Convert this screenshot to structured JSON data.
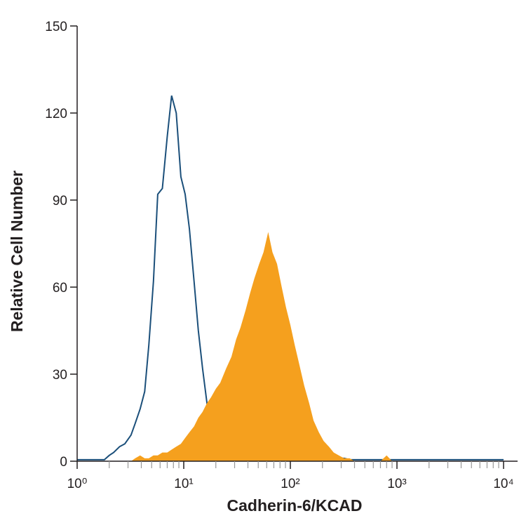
{
  "chart_data": {
    "type": "histogram",
    "x_label": "Cadherin-6/KCAD",
    "y_label": "Relative Cell Number",
    "x": [
      1,
      1.8,
      2,
      2.2,
      2.5,
      2.8,
      3.2,
      3.5,
      3.9,
      4.3,
      4.7,
      5.2,
      5.7,
      6.3,
      7,
      7.7,
      8.5,
      9.4,
      10.3,
      11.3,
      12.5,
      13.7,
      15,
      16.5,
      18,
      20,
      22,
      25,
      28,
      31,
      34,
      38,
      42,
      46,
      51,
      56,
      62,
      68,
      75,
      83,
      91,
      100,
      110,
      122,
      135,
      150,
      165,
      185,
      205,
      230,
      255,
      285,
      320,
      360,
      400,
      500,
      700,
      800,
      900,
      1000,
      10000
    ],
    "series": [
      {
        "color": "#1b4f7a",
        "fill": false,
        "values": [
          0.5,
          0.5,
          2,
          3,
          5,
          6,
          9,
          13,
          18,
          24,
          40,
          62,
          92,
          94,
          112,
          126,
          120,
          98,
          92,
          80,
          62,
          45,
          32,
          20,
          10,
          4,
          2,
          1,
          1,
          1,
          1,
          1,
          1,
          2,
          1,
          1,
          1,
          2,
          1,
          1,
          1,
          2,
          1,
          1,
          1,
          1,
          2,
          1,
          1,
          1,
          1,
          1,
          1,
          0.5,
          0.5,
          0.5,
          0.5,
          0.5,
          0.5,
          0.5,
          0.5
        ]
      },
      {
        "color": "#f5a01e",
        "fill": true,
        "values": [
          0,
          0,
          0,
          0,
          0,
          0,
          0,
          1,
          2,
          1,
          1,
          2,
          2,
          3,
          3,
          4,
          5,
          6,
          8,
          10,
          12,
          15,
          17,
          20,
          22,
          25,
          27,
          32,
          36,
          42,
          46,
          52,
          58,
          63,
          68,
          72,
          79,
          72,
          68,
          60,
          53,
          47,
          40,
          33,
          26,
          20,
          14,
          10,
          7,
          5,
          3,
          2,
          1,
          1,
          0,
          0,
          0,
          2,
          0,
          0,
          0
        ]
      }
    ],
    "xlog": true,
    "xlim": [
      1,
      10000
    ],
    "ylim": [
      0,
      150
    ],
    "xticks": [
      {
        "value": 1,
        "label": "10⁰"
      },
      {
        "value": 10,
        "label": "10¹"
      },
      {
        "value": 100,
        "label": "10²"
      },
      {
        "value": 1000,
        "label": "10³"
      },
      {
        "value": 10000,
        "label": "10⁴"
      }
    ],
    "xminorticks": [
      2,
      3,
      4,
      5,
      6,
      7,
      8,
      9,
      20,
      30,
      40,
      50,
      60,
      70,
      80,
      90,
      200,
      300,
      400,
      500,
      600,
      700,
      800,
      900,
      2000,
      3000,
      4000,
      5000,
      6000,
      7000,
      8000,
      9000
    ],
    "yticks": [
      0,
      30,
      60,
      90,
      120,
      150
    ]
  }
}
